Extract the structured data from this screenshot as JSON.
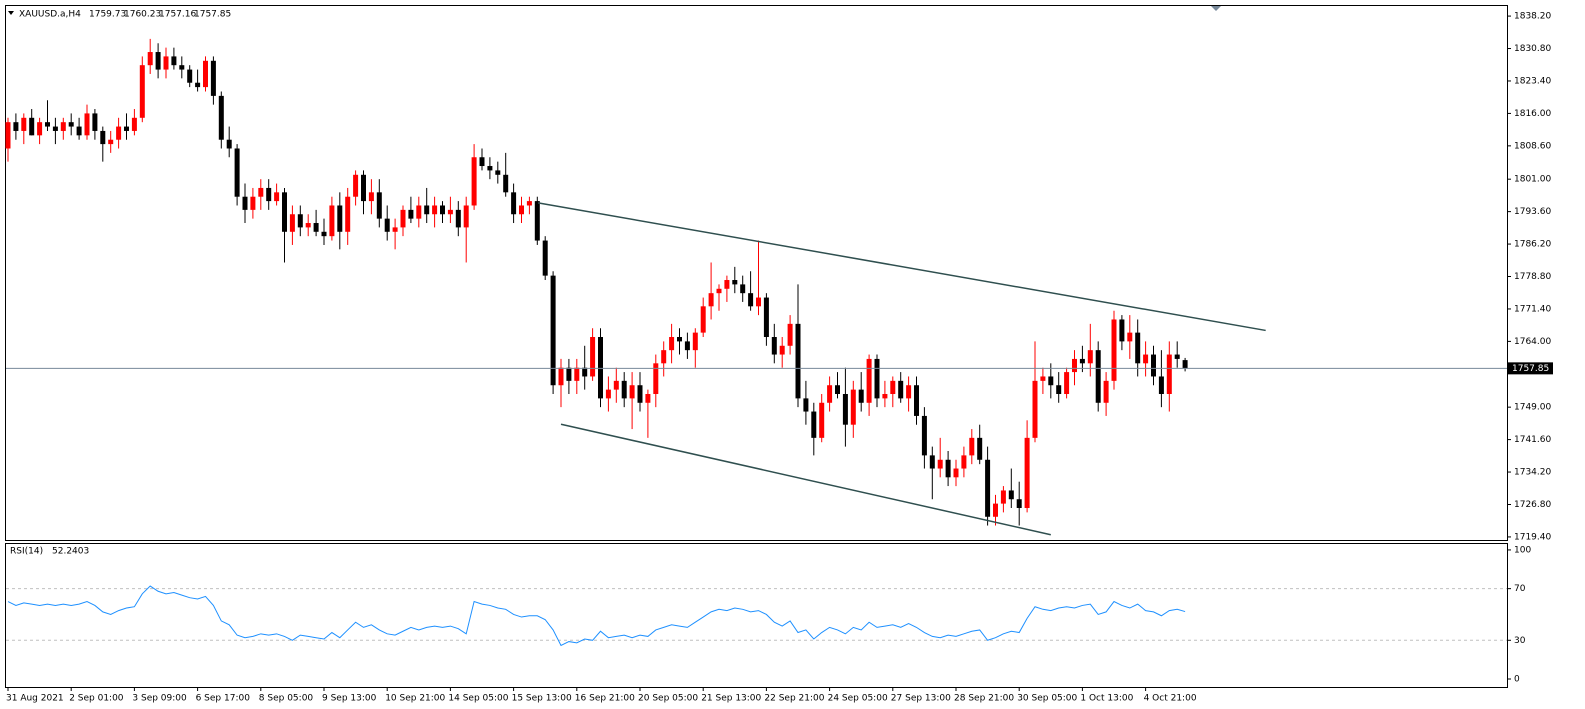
{
  "chart_data": [
    {
      "type": "candlestick",
      "symbol": "XAUUSD.a,H4",
      "bull_color": "#ff0000",
      "bear_color": "#000000",
      "bid_line_color": "#778899",
      "trendline_color": "#2f4f4f",
      "ylim": [
        1718.7,
        1840.5
      ],
      "yticks": [
        {
          "value": 1838.2,
          "label": "1838.20"
        },
        {
          "value": 1830.8,
          "label": "1830.80"
        },
        {
          "value": 1823.4,
          "label": "1823.40"
        },
        {
          "value": 1816,
          "label": "1816.00"
        },
        {
          "value": 1808.6,
          "label": "1808.60"
        },
        {
          "value": 1801,
          "label": "1801.00"
        },
        {
          "value": 1793.6,
          "label": "1793.60"
        },
        {
          "value": 1786.2,
          "label": "1786.20"
        },
        {
          "value": 1778.8,
          "label": "1778.80"
        },
        {
          "value": 1771.4,
          "label": "1771.40"
        },
        {
          "value": 1764,
          "label": "1764.00"
        },
        {
          "value": 1749,
          "label": "1749.00"
        },
        {
          "value": 1741.6,
          "label": "1741.60"
        },
        {
          "value": 1734.2,
          "label": "1734.20"
        },
        {
          "value": 1726.8,
          "label": "1726.80"
        },
        {
          "value": 1719.4,
          "label": "1719.40"
        }
      ],
      "categories": [
        "31 Aug 2021",
        null,
        null,
        null,
        null,
        null,
        null,
        null,
        "2 Sep 01:00",
        null,
        null,
        null,
        null,
        null,
        null,
        null,
        "3 Sep 09:00",
        null,
        null,
        null,
        null,
        null,
        null,
        null,
        "6 Sep 17:00",
        null,
        null,
        null,
        null,
        null,
        null,
        null,
        "8 Sep 05:00",
        null,
        null,
        null,
        null,
        null,
        null,
        null,
        "9 Sep 13:00",
        null,
        null,
        null,
        null,
        null,
        null,
        null,
        "10 Sep 21:00",
        null,
        null,
        null,
        null,
        null,
        null,
        null,
        "14 Sep 05:00",
        null,
        null,
        null,
        null,
        null,
        null,
        null,
        "15 Sep 13:00",
        null,
        null,
        null,
        null,
        null,
        null,
        null,
        "16 Sep 21:00",
        null,
        null,
        null,
        null,
        null,
        null,
        null,
        "20 Sep 05:00",
        null,
        null,
        null,
        null,
        null,
        null,
        null,
        "21 Sep 13:00",
        null,
        null,
        null,
        null,
        null,
        null,
        null,
        "22 Sep 21:00",
        null,
        null,
        null,
        null,
        null,
        null,
        null,
        "24 Sep 05:00",
        null,
        null,
        null,
        null,
        null,
        null,
        null,
        "27 Sep 13:00",
        null,
        null,
        null,
        null,
        null,
        null,
        null,
        "28 Sep 21:00",
        null,
        null,
        null,
        null,
        null,
        null,
        null,
        "30 Sep 05:00",
        null,
        null,
        null,
        null,
        null,
        null,
        null,
        "1 Oct 13:00",
        null,
        null,
        null,
        null,
        null,
        null,
        null,
        "4 Oct 21:00",
        null,
        null,
        null,
        null,
        null
      ],
      "candles": [
        [
          1808,
          1815,
          1805,
          1814
        ],
        [
          1814,
          1816,
          1810,
          1812
        ],
        [
          1812,
          1816,
          1809,
          1815
        ],
        [
          1815,
          1817,
          1811,
          1811
        ],
        [
          1811,
          1815,
          1809,
          1814
        ],
        [
          1814,
          1819,
          1812,
          1813
        ],
        [
          1813,
          1815,
          1809,
          1812
        ],
        [
          1812,
          1815,
          1810,
          1814
        ],
        [
          1814,
          1816,
          1811,
          1813
        ],
        [
          1813,
          1815,
          1810,
          1811
        ],
        [
          1811,
          1818,
          1810,
          1816
        ],
        [
          1816,
          1817,
          1810,
          1812
        ],
        [
          1812,
          1813,
          1805,
          1809
        ],
        [
          1809,
          1812,
          1807,
          1810
        ],
        [
          1810,
          1815,
          1808,
          1813
        ],
        [
          1813,
          1816,
          1810,
          1812
        ],
        [
          1812,
          1817,
          1811,
          1815
        ],
        [
          1815,
          1829,
          1814,
          1827
        ],
        [
          1827,
          1833,
          1825,
          1830
        ],
        [
          1830,
          1832,
          1824,
          1826
        ],
        [
          1826,
          1831,
          1824,
          1829
        ],
        [
          1829,
          1831,
          1826,
          1827
        ],
        [
          1827,
          1829,
          1824,
          1826
        ],
        [
          1826,
          1827,
          1822,
          1823
        ],
        [
          1823,
          1826,
          1821,
          1822
        ],
        [
          1822,
          1829,
          1821,
          1828
        ],
        [
          1828,
          1829,
          1818,
          1820
        ],
        [
          1820,
          1821,
          1808,
          1810
        ],
        [
          1810,
          1813,
          1806,
          1808
        ],
        [
          1808,
          1809,
          1795,
          1797
        ],
        [
          1797,
          1800,
          1791,
          1794
        ],
        [
          1794,
          1799,
          1792,
          1797
        ],
        [
          1797,
          1801,
          1794,
          1799
        ],
        [
          1799,
          1801,
          1794,
          1796
        ],
        [
          1796,
          1800,
          1795,
          1798
        ],
        [
          1798,
          1799,
          1782,
          1789
        ],
        [
          1789,
          1795,
          1786,
          1793
        ],
        [
          1793,
          1795,
          1788,
          1790
        ],
        [
          1790,
          1793,
          1788,
          1791
        ],
        [
          1791,
          1794,
          1788,
          1789
        ],
        [
          1789,
          1792,
          1786,
          1788
        ],
        [
          1788,
          1797,
          1787,
          1795
        ],
        [
          1795,
          1798,
          1785,
          1789
        ],
        [
          1789,
          1799,
          1786,
          1797
        ],
        [
          1797,
          1803,
          1795,
          1802
        ],
        [
          1802,
          1803,
          1793,
          1796
        ],
        [
          1796,
          1801,
          1793,
          1798
        ],
        [
          1798,
          1801,
          1790,
          1792
        ],
        [
          1792,
          1795,
          1787,
          1789
        ],
        [
          1789,
          1792,
          1785,
          1790
        ],
        [
          1790,
          1795,
          1788,
          1794
        ],
        [
          1794,
          1797,
          1791,
          1792
        ],
        [
          1792,
          1797,
          1790,
          1795
        ],
        [
          1795,
          1799,
          1791,
          1793
        ],
        [
          1793,
          1797,
          1790,
          1795
        ],
        [
          1795,
          1796,
          1791,
          1793
        ],
        [
          1793,
          1797,
          1791,
          1794
        ],
        [
          1794,
          1796,
          1788,
          1790
        ],
        [
          1790,
          1797,
          1782,
          1795
        ],
        [
          1795,
          1809,
          1794,
          1806
        ],
        [
          1806,
          1808,
          1803,
          1804
        ],
        [
          1804,
          1806,
          1801,
          1803
        ],
        [
          1803,
          1805,
          1800,
          1802
        ],
        [
          1802,
          1807,
          1797,
          1798
        ],
        [
          1798,
          1800,
          1791,
          1793
        ],
        [
          1793,
          1797,
          1791,
          1795
        ],
        [
          1795,
          1797,
          1793,
          1796
        ],
        [
          1796,
          1797,
          1786,
          1787
        ],
        [
          1787,
          1788,
          1778,
          1779
        ],
        [
          1779,
          1780,
          1752,
          1754
        ],
        [
          1754,
          1760,
          1749,
          1758
        ],
        [
          1758,
          1760,
          1752,
          1755
        ],
        [
          1755,
          1760,
          1752,
          1758
        ],
        [
          1758,
          1763,
          1753,
          1756
        ],
        [
          1756,
          1767,
          1755,
          1765
        ],
        [
          1765,
          1767,
          1749,
          1751
        ],
        [
          1751,
          1756,
          1748,
          1753
        ],
        [
          1753,
          1758,
          1750,
          1755
        ],
        [
          1755,
          1757,
          1749,
          1751
        ],
        [
          1751,
          1757,
          1744,
          1754
        ],
        [
          1754,
          1757,
          1748,
          1750
        ],
        [
          1750,
          1753,
          1742,
          1752
        ],
        [
          1752,
          1761,
          1749,
          1759
        ],
        [
          1759,
          1764,
          1756,
          1762
        ],
        [
          1762,
          1768,
          1759,
          1765
        ],
        [
          1765,
          1767,
          1761,
          1764
        ],
        [
          1764,
          1766,
          1760,
          1762
        ],
        [
          1762,
          1767,
          1758,
          1766
        ],
        [
          1766,
          1774,
          1765,
          1772
        ],
        [
          1772,
          1782,
          1769,
          1775
        ],
        [
          1775,
          1777,
          1771,
          1776
        ],
        [
          1776,
          1779,
          1773,
          1778
        ],
        [
          1778,
          1781,
          1775,
          1777
        ],
        [
          1777,
          1779,
          1773,
          1775
        ],
        [
          1775,
          1780,
          1771,
          1772
        ],
        [
          1772,
          1787,
          1770,
          1774
        ],
        [
          1774,
          1775,
          1763,
          1765
        ],
        [
          1765,
          1768,
          1759,
          1761
        ],
        [
          1761,
          1765,
          1758,
          1763
        ],
        [
          1763,
          1770,
          1761,
          1768
        ],
        [
          1768,
          1777,
          1749,
          1751
        ],
        [
          1751,
          1755,
          1745,
          1748
        ],
        [
          1748,
          1750,
          1738,
          1742
        ],
        [
          1742,
          1752,
          1741,
          1750
        ],
        [
          1750,
          1756,
          1748,
          1754
        ],
        [
          1754,
          1757,
          1751,
          1752
        ],
        [
          1752,
          1758,
          1740,
          1745
        ],
        [
          1745,
          1755,
          1742,
          1753
        ],
        [
          1753,
          1757,
          1748,
          1750
        ],
        [
          1750,
          1761,
          1747,
          1760
        ],
        [
          1760,
          1761,
          1749,
          1751
        ],
        [
          1751,
          1755,
          1749,
          1752
        ],
        [
          1752,
          1756,
          1749,
          1755
        ],
        [
          1755,
          1757,
          1750,
          1751
        ],
        [
          1751,
          1756,
          1748,
          1754
        ],
        [
          1754,
          1756,
          1745,
          1747
        ],
        [
          1747,
          1749,
          1735,
          1738
        ],
        [
          1738,
          1740,
          1728,
          1735
        ],
        [
          1735,
          1742,
          1733,
          1737
        ],
        [
          1737,
          1739,
          1731,
          1733
        ],
        [
          1733,
          1737,
          1731,
          1735
        ],
        [
          1735,
          1740,
          1733,
          1738
        ],
        [
          1738,
          1744,
          1736,
          1742
        ],
        [
          1742,
          1745,
          1736,
          1737
        ],
        [
          1737,
          1740,
          1722,
          1724
        ],
        [
          1724,
          1729,
          1722,
          1727
        ],
        [
          1727,
          1731,
          1725,
          1730
        ],
        [
          1730,
          1735,
          1726,
          1728
        ],
        [
          1728,
          1732,
          1722,
          1726
        ],
        [
          1726,
          1746,
          1725,
          1742
        ],
        [
          1742,
          1764,
          1741,
          1755
        ],
        [
          1755,
          1758,
          1752,
          1756
        ],
        [
          1756,
          1759,
          1751,
          1754
        ],
        [
          1754,
          1757,
          1750,
          1752
        ],
        [
          1752,
          1758,
          1751,
          1757
        ],
        [
          1757,
          1762,
          1754,
          1760
        ],
        [
          1760,
          1763,
          1757,
          1759
        ],
        [
          1759,
          1768,
          1756,
          1762
        ],
        [
          1762,
          1764,
          1748,
          1750
        ],
        [
          1750,
          1757,
          1747,
          1755
        ],
        [
          1755,
          1771,
          1753,
          1769
        ],
        [
          1769,
          1770,
          1762,
          1764
        ],
        [
          1764,
          1770,
          1760,
          1766
        ],
        [
          1766,
          1769,
          1756,
          1759
        ],
        [
          1759,
          1764,
          1756,
          1761
        ],
        [
          1761,
          1763,
          1754,
          1756
        ],
        [
          1756,
          1762,
          1749,
          1752
        ],
        [
          1752,
          1764,
          1748,
          1761
        ],
        [
          1761,
          1764,
          1758,
          1760
        ],
        [
          1759.73,
          1760.23,
          1757.16,
          1757.85
        ]
      ],
      "trendlines": [
        {
          "x": [
            67.1,
            159.2
          ],
          "y": [
            1795.6,
            1766.5
          ]
        },
        {
          "x": [
            70.0,
            132.0
          ],
          "y": [
            1745.1,
            1719.9
          ]
        }
      ]
    },
    {
      "type": "line",
      "name": "RSI(14)",
      "color": "#1e90ff",
      "ylim": [
        -6.2,
        104.6
      ],
      "yticks": [
        0,
        30,
        70,
        100
      ],
      "levels": [
        30,
        70
      ],
      "values": [
        60,
        57,
        59,
        58,
        57,
        58,
        57,
        58,
        57,
        58,
        60,
        57,
        52,
        50,
        53,
        55,
        56,
        66,
        72,
        68,
        66,
        67,
        65,
        63,
        62,
        64,
        57,
        45,
        42,
        34,
        32,
        33,
        35,
        34,
        35,
        33,
        30,
        34,
        33,
        32,
        31,
        36,
        32,
        38,
        44,
        40,
        42,
        38,
        35,
        34,
        37,
        40,
        38,
        40,
        41,
        40,
        41,
        39,
        35,
        60,
        58,
        57,
        55,
        54,
        50,
        48,
        49,
        49,
        46,
        38,
        26,
        29,
        28,
        31,
        30,
        37,
        32,
        33,
        34,
        32,
        34,
        33,
        38,
        40,
        42,
        41,
        40,
        44,
        48,
        52,
        54,
        53,
        55,
        54,
        52,
        53,
        50,
        44,
        41,
        45,
        36,
        38,
        31,
        36,
        40,
        38,
        35,
        40,
        38,
        44,
        40,
        41,
        42,
        40,
        43,
        40,
        36,
        33,
        32,
        34,
        33,
        35,
        37,
        38,
        30,
        32,
        35,
        37,
        36,
        47,
        56,
        54,
        53,
        55,
        56,
        55,
        57,
        58,
        50,
        52,
        60,
        57,
        55,
        58,
        53,
        52,
        49,
        53,
        54,
        52.2403
      ]
    }
  ]
}
